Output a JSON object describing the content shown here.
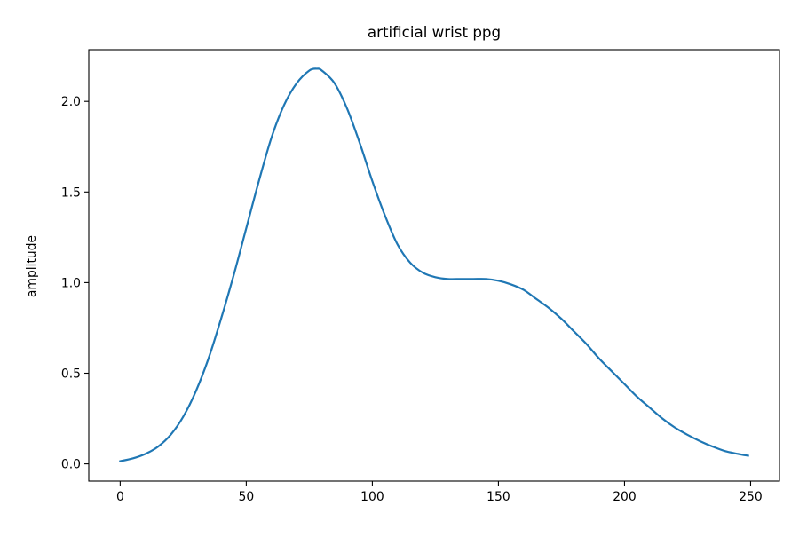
{
  "chart_data": {
    "type": "line",
    "title": "artificial wrist ppg",
    "xlabel": "",
    "ylabel": "amplitude",
    "xlim": [
      -12.45,
      261.45
    ],
    "ylim": [
      -0.095,
      2.285
    ],
    "xticks": [
      0,
      50,
      100,
      150,
      200,
      250
    ],
    "yticks": [
      0.0,
      0.5,
      1.0,
      1.5,
      2.0
    ],
    "xtick_labels": [
      "0",
      "50",
      "100",
      "150",
      "200",
      "250"
    ],
    "ytick_labels": [
      "0.0",
      "0.5",
      "1.0",
      "1.5",
      "2.0"
    ],
    "grid": false,
    "legend": "none",
    "series": [
      {
        "color": "#1f77b4",
        "x": [
          0,
          5,
          10,
          15,
          20,
          25,
          30,
          35,
          40,
          45,
          50,
          55,
          60,
          65,
          70,
          75,
          78,
          80,
          85,
          90,
          95,
          100,
          105,
          110,
          115,
          120,
          125,
          130,
          135,
          140,
          145,
          150,
          155,
          160,
          165,
          170,
          175,
          180,
          185,
          190,
          195,
          200,
          205,
          210,
          215,
          220,
          225,
          230,
          235,
          240,
          245,
          249
        ],
        "y": [
          0.015,
          0.03,
          0.055,
          0.095,
          0.16,
          0.26,
          0.4,
          0.58,
          0.8,
          1.04,
          1.3,
          1.56,
          1.8,
          1.98,
          2.1,
          2.17,
          2.18,
          2.17,
          2.1,
          1.96,
          1.77,
          1.56,
          1.37,
          1.21,
          1.11,
          1.055,
          1.03,
          1.02,
          1.02,
          1.02,
          1.02,
          1.01,
          0.99,
          0.96,
          0.91,
          0.86,
          0.8,
          0.73,
          0.66,
          0.58,
          0.51,
          0.44,
          0.37,
          0.31,
          0.25,
          0.2,
          0.16,
          0.125,
          0.095,
          0.07,
          0.055,
          0.045
        ]
      }
    ]
  }
}
